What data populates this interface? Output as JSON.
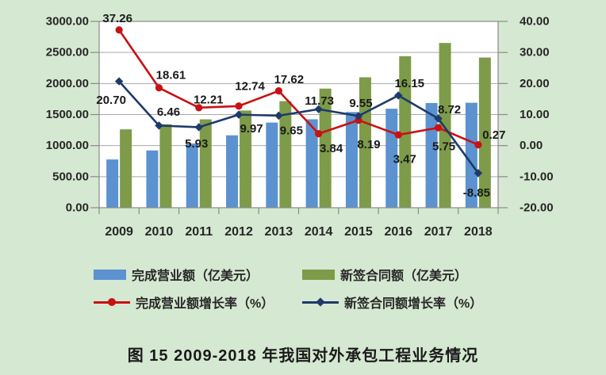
{
  "page": {
    "background": "#d5e8d1",
    "plot_background": "#ffffff",
    "grid_color": "#a9a9a9",
    "border_color": "#8a8a8a",
    "text_color": "#262626"
  },
  "chart_data": {
    "type": "bar",
    "subtype": "combo-bar-line-dual-axis",
    "title": "",
    "xlabel": "",
    "ylabel": "",
    "grid": true,
    "legend_position": "bottom",
    "categories": [
      "2009",
      "2010",
      "2011",
      "2012",
      "2013",
      "2014",
      "2015",
      "2016",
      "2017",
      "2018"
    ],
    "series": [
      {
        "name": "完成营业额（亿美元）",
        "type": "bar",
        "axis": "left",
        "color": "#5b92cf",
        "values": [
          777,
          922,
          1034,
          1166,
          1371,
          1424,
          1541,
          1594,
          1686,
          1690
        ]
      },
      {
        "name": "新签合同额（亿美元）",
        "type": "bar",
        "axis": "left",
        "color": "#7d9b49",
        "values": [
          1262,
          1344,
          1423,
          1565,
          1716,
          1918,
          2100,
          2440,
          2653,
          2418
        ]
      },
      {
        "name": "完成营业额增长率（%）",
        "type": "line",
        "axis": "right",
        "color": "#c81114",
        "marker": "circle",
        "values": [
          37.26,
          18.61,
          12.21,
          12.74,
          17.62,
          3.84,
          8.19,
          3.47,
          5.75,
          0.27
        ],
        "point_labels": [
          "37.26",
          "18.61",
          "12.21",
          "12.74",
          "17.62",
          "3.84",
          "8.19",
          "3.47",
          "5.75",
          "0.27"
        ]
      },
      {
        "name": "新签合同额增长率（%）",
        "type": "line",
        "axis": "right",
        "color": "#1d3a6b",
        "marker": "diamond",
        "values": [
          20.7,
          6.46,
          5.93,
          9.97,
          9.65,
          11.73,
          9.55,
          16.15,
          8.72,
          -8.85
        ],
        "point_labels": [
          "20.70",
          "6.46",
          "5.93",
          "9.97",
          "9.65",
          "11.73",
          "9.55",
          "16.15",
          "8.72",
          "-8.85"
        ]
      }
    ],
    "left_axis": {
      "min": 0,
      "max": 3000,
      "step": 500,
      "tick_labels": [
        "3000.00",
        "2500.00",
        "2000.00",
        "1500.00",
        "1000.00",
        "500.00",
        "0.00"
      ]
    },
    "right_axis": {
      "min": -20,
      "max": 40,
      "step": 10,
      "tick_labels": [
        "40.00",
        "30.00",
        "20.00",
        "10.00",
        "0.00",
        "-10.00",
        "-20.00"
      ]
    }
  },
  "caption": "图 15  2009-2018 年我国对外承包工程业务情况"
}
